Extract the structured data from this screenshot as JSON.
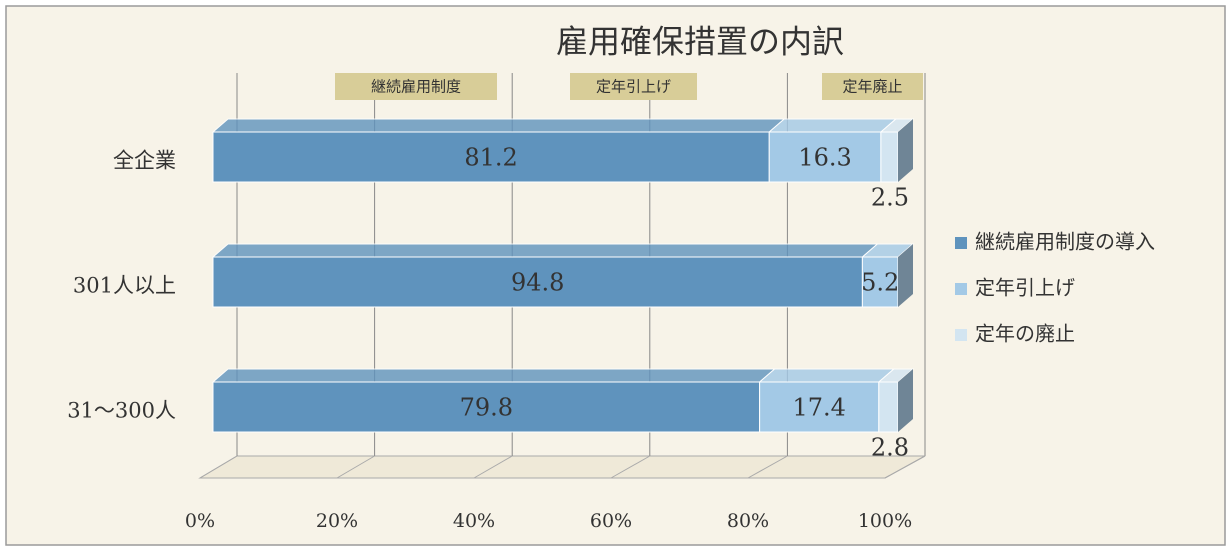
{
  "chart_data": {
    "type": "stacked_bar_horizontal",
    "title": "雇用確保措置の内訳",
    "categories": [
      "全企業",
      "301人以上",
      "31～300人"
    ],
    "series": [
      {
        "name": "継続雇用制度の導入",
        "color": "#5f93bd",
        "values": [
          81.2,
          94.8,
          79.8
        ]
      },
      {
        "name": "定年引上げ",
        "color": "#a3c9e6",
        "values": [
          16.3,
          5.2,
          17.4
        ]
      },
      {
        "name": "定年の廃止",
        "color": "#d3e5f1",
        "values": [
          2.5,
          0,
          2.8
        ]
      }
    ],
    "annotations": [
      "継続雇用制度",
      "定年引上げ",
      "定年廃止"
    ],
    "xlim": [
      0,
      100
    ],
    "xticks": [
      {
        "value": 0,
        "label": "0%"
      },
      {
        "value": 20,
        "label": "20%"
      },
      {
        "value": 40,
        "label": "40%"
      },
      {
        "value": 60,
        "label": "60%"
      },
      {
        "value": 80,
        "label": "80%"
      },
      {
        "value": 100,
        "label": "100%"
      }
    ],
    "grid": true,
    "legend": "right"
  }
}
